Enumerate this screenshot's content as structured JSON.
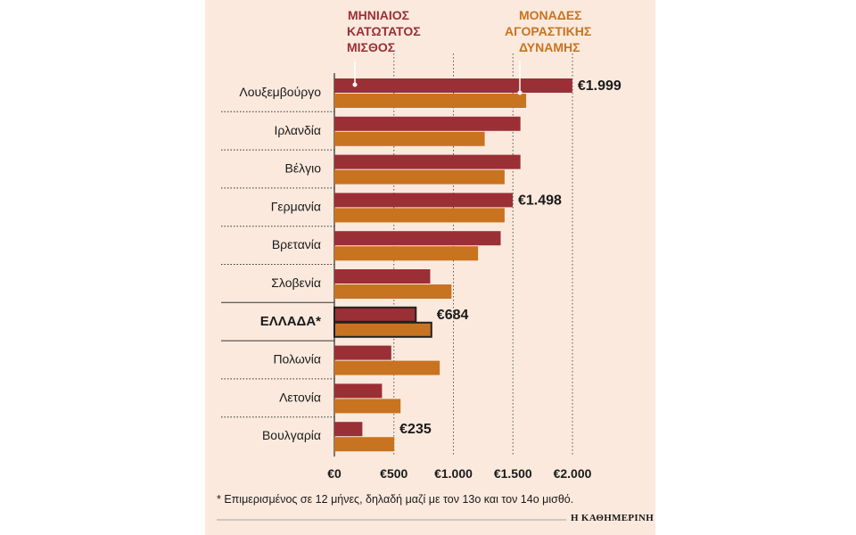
{
  "legend": {
    "series_a": [
      "ΜΗΝΙΑΙΟΣ",
      "ΚΑΤΩΤΑΤΟΣ",
      "ΜΙΣΘΟΣ"
    ],
    "series_b": [
      "ΜΟΝΑΔΕΣ",
      "ΑΓΟΡΑΣΤΙΚΗΣ",
      "ΔΥΝΑΜΗΣ"
    ]
  },
  "colors": {
    "wage": "#9a2f35",
    "pps": "#c8731f",
    "background": "#fbe9dd",
    "highlight_border": "#222222"
  },
  "footnote": "* Επιμερισμένος σε 12 μήνες, δηλαδή μαζί με τον 13ο και τον 14ο μισθό.",
  "credit": "Η ΚΑΘΗΜΕΡΙΝΗ",
  "chart_data": {
    "type": "bar",
    "orientation": "horizontal",
    "categories": [
      "Λουξεμβούργο",
      "Ιρλανδία",
      "Βέλγιο",
      "Γερμανία",
      "Βρετανία",
      "Σλοβενία",
      "ΕΛΛΑΔΑ*",
      "Πολωνία",
      "Λετονία",
      "Βουλγαρία"
    ],
    "highlight_category": "ΕΛΛΑΔΑ*",
    "series": [
      {
        "name": "ΜΗΝΙΑΙΟΣ ΚΑΤΩΤΑΤΟΣ ΜΙΣΘΟΣ",
        "values": [
          1999,
          1563,
          1563,
          1498,
          1397,
          805,
          684,
          478,
          400,
          235
        ]
      },
      {
        "name": "ΜΟΝΑΔΕΣ ΑΓΟΡΑΣΤΙΚΗΣ ΔΥΝΑΜΗΣ",
        "values": [
          1611,
          1263,
          1430,
          1430,
          1207,
          984,
          815,
          885,
          556,
          503
        ]
      }
    ],
    "data_labels": [
      {
        "category": "Λουξεμβούργο",
        "text": "€1.999"
      },
      {
        "category": "Γερμανία",
        "text": "€1.498"
      },
      {
        "category": "ΕΛΛΑΔΑ*",
        "text": "€684"
      },
      {
        "category": "Βουλγαρία",
        "text": "€235"
      }
    ],
    "xlim": [
      0,
      2000
    ],
    "xticks": [
      0,
      500,
      1000,
      1500,
      2000
    ],
    "xtick_labels": [
      "€0",
      "€500",
      "€1.000",
      "€1.500",
      "€2.000"
    ],
    "grid": true,
    "legend_position": "top"
  }
}
